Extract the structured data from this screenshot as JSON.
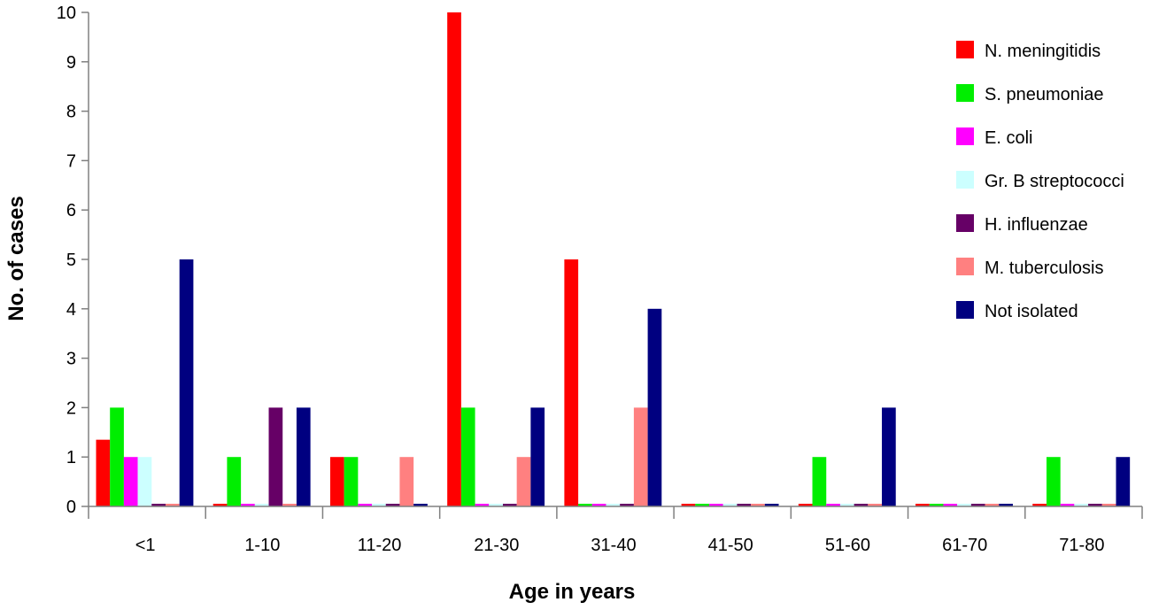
{
  "chart_data": {
    "type": "bar",
    "title": "",
    "xlabel": "Age in years",
    "ylabel": "No. of cases",
    "ylim": [
      0,
      10
    ],
    "yticks": [
      0,
      1,
      2,
      3,
      4,
      5,
      6,
      7,
      8,
      9,
      10
    ],
    "categories": [
      "<1",
      "1-10",
      "11-20",
      "21-30",
      "31-40",
      "41-50",
      "51-60",
      "61-70",
      "71-80"
    ],
    "legend_position": "top-right",
    "grid": false,
    "series": [
      {
        "name": "N. meningitidis",
        "color": "#ff0000",
        "values": [
          1.35,
          0,
          1,
          10,
          5,
          0,
          0,
          0,
          0
        ]
      },
      {
        "name": "S. pneumoniae",
        "color": "#00ee00",
        "values": [
          2,
          1,
          1,
          2,
          0,
          0,
          1,
          0,
          1
        ]
      },
      {
        "name": "E. coli",
        "color": "#ff00ff",
        "values": [
          1,
          0,
          0,
          0,
          0,
          0,
          0,
          0,
          0
        ]
      },
      {
        "name": "Gr. B streptococci",
        "color": "#ccffff",
        "values": [
          1,
          0,
          0,
          0,
          0,
          0,
          0,
          0,
          0
        ]
      },
      {
        "name": "H. influenzae",
        "color": "#660066",
        "values": [
          0,
          2,
          0,
          0,
          0,
          0,
          0,
          0,
          0
        ]
      },
      {
        "name": "M. tuberculosis",
        "color": "#ff8080",
        "values": [
          0,
          0,
          1,
          1,
          2,
          0,
          0,
          0,
          0
        ]
      },
      {
        "name": "Not isolated",
        "color": "#000080",
        "values": [
          5,
          2,
          0,
          2,
          4,
          0,
          2,
          0,
          1
        ]
      }
    ]
  }
}
